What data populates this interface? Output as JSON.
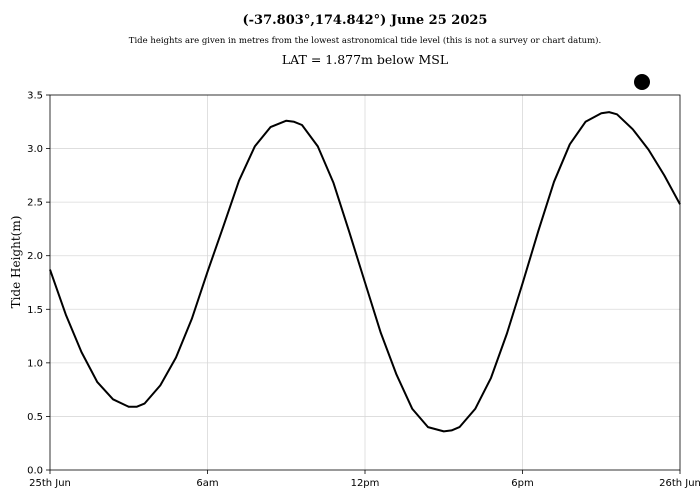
{
  "chart_data": {
    "type": "line",
    "title": "(-37.803°,174.842°) June 25 2025",
    "subtitle": "Tide heights are given in metres from the lowest astronomical tide level (this is not a survey or chart datum).",
    "datum_note": "LAT = 1.877m below MSL",
    "xlabel": "",
    "ylabel": "Tide Height(m)",
    "xlim": [
      0,
      24
    ],
    "ylim": [
      0,
      3.5
    ],
    "x_ticks": [
      {
        "value": 0,
        "label": "25th Jun"
      },
      {
        "value": 6,
        "label": "6am"
      },
      {
        "value": 12,
        "label": "12pm"
      },
      {
        "value": 18,
        "label": "6pm"
      },
      {
        "value": 24,
        "label": "26th Jun"
      }
    ],
    "y_ticks": [
      {
        "value": 0.0,
        "label": "0.0"
      },
      {
        "value": 0.5,
        "label": "0.5"
      },
      {
        "value": 1.0,
        "label": "1.0"
      },
      {
        "value": 1.5,
        "label": "1.5"
      },
      {
        "value": 2.0,
        "label": "2.0"
      },
      {
        "value": 2.5,
        "label": "2.5"
      },
      {
        "value": 3.0,
        "label": "3.0"
      },
      {
        "value": 3.5,
        "label": "3.5"
      }
    ],
    "grid": true,
    "line_color": "#000000",
    "grid_color": "#d9d9d9",
    "marker_color": "#000000",
    "series": [
      {
        "x": [
          0,
          0.6,
          1.2,
          1.8,
          2.4,
          3.0,
          3.3,
          3.6,
          4.2,
          4.8,
          5.4,
          6.0,
          6.6,
          7.2,
          7.8,
          8.4,
          9.0,
          9.3,
          9.6,
          10.2,
          10.8,
          11.4,
          12.0,
          12.6,
          13.2,
          13.8,
          14.4,
          15.0,
          15.3,
          15.6,
          16.2,
          16.8,
          17.4,
          18.0,
          18.6,
          19.2,
          19.8,
          20.4,
          21.0,
          21.3,
          21.6,
          22.2,
          22.8,
          23.4,
          24.0
        ],
        "y": [
          1.87,
          1.45,
          1.1,
          0.82,
          0.66,
          0.59,
          0.59,
          0.62,
          0.79,
          1.05,
          1.41,
          1.85,
          2.27,
          2.7,
          3.02,
          3.2,
          3.26,
          3.25,
          3.22,
          3.02,
          2.68,
          2.22,
          1.75,
          1.28,
          0.89,
          0.57,
          0.4,
          0.36,
          0.37,
          0.4,
          0.57,
          0.86,
          1.27,
          1.74,
          2.23,
          2.69,
          3.04,
          3.25,
          3.33,
          3.34,
          3.32,
          3.18,
          2.99,
          2.75,
          2.48
        ]
      }
    ]
  }
}
